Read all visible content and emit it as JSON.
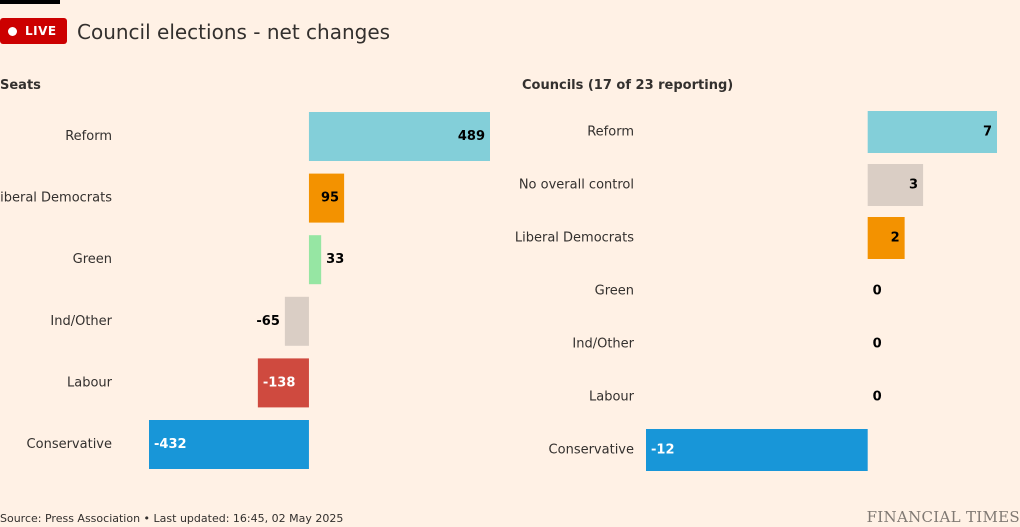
{
  "header": {
    "live_label": "LIVE",
    "title": "Council elections - net changes"
  },
  "footer": {
    "source": "Source: Press Association • Last updated: 16:45, 02 May 2025",
    "brand": "FINANCIAL TIMES"
  },
  "chart_data": [
    {
      "type": "bar",
      "orientation": "horizontal",
      "title": "Seats",
      "categories": [
        "Reform",
        "Liberal Democrats",
        "Green",
        "Ind/Other",
        "Labour",
        "Conservative"
      ],
      "values": [
        489,
        95,
        33,
        -65,
        -138,
        -432
      ],
      "colors": [
        "#83cfd9",
        "#f39200",
        "#96e6a3",
        "#dacec5",
        "#cf4a3f",
        "#1896d8"
      ],
      "label_colors": [
        "#000000",
        "#000000",
        "#33302e",
        "#33302e",
        "#ffffff",
        "#ffffff"
      ],
      "xlim": [
        -432,
        489
      ]
    },
    {
      "type": "bar",
      "orientation": "horizontal",
      "title": "Councils (17 of 23 reporting)",
      "categories": [
        "Reform",
        "No overall control",
        "Liberal Democrats",
        "Green",
        "Ind/Other",
        "Labour",
        "Conservative"
      ],
      "values": [
        7,
        3,
        2,
        0,
        0,
        0,
        -12
      ],
      "colors": [
        "#83cfd9",
        "#dacec5",
        "#f39200",
        "#96e6a3",
        "#dacec5",
        "#cf4a3f",
        "#1896d8"
      ],
      "label_colors": [
        "#000000",
        "#000000",
        "#000000",
        "#000000",
        "#000000",
        "#000000",
        "#ffffff"
      ],
      "xlim": [
        -12,
        7
      ]
    }
  ]
}
